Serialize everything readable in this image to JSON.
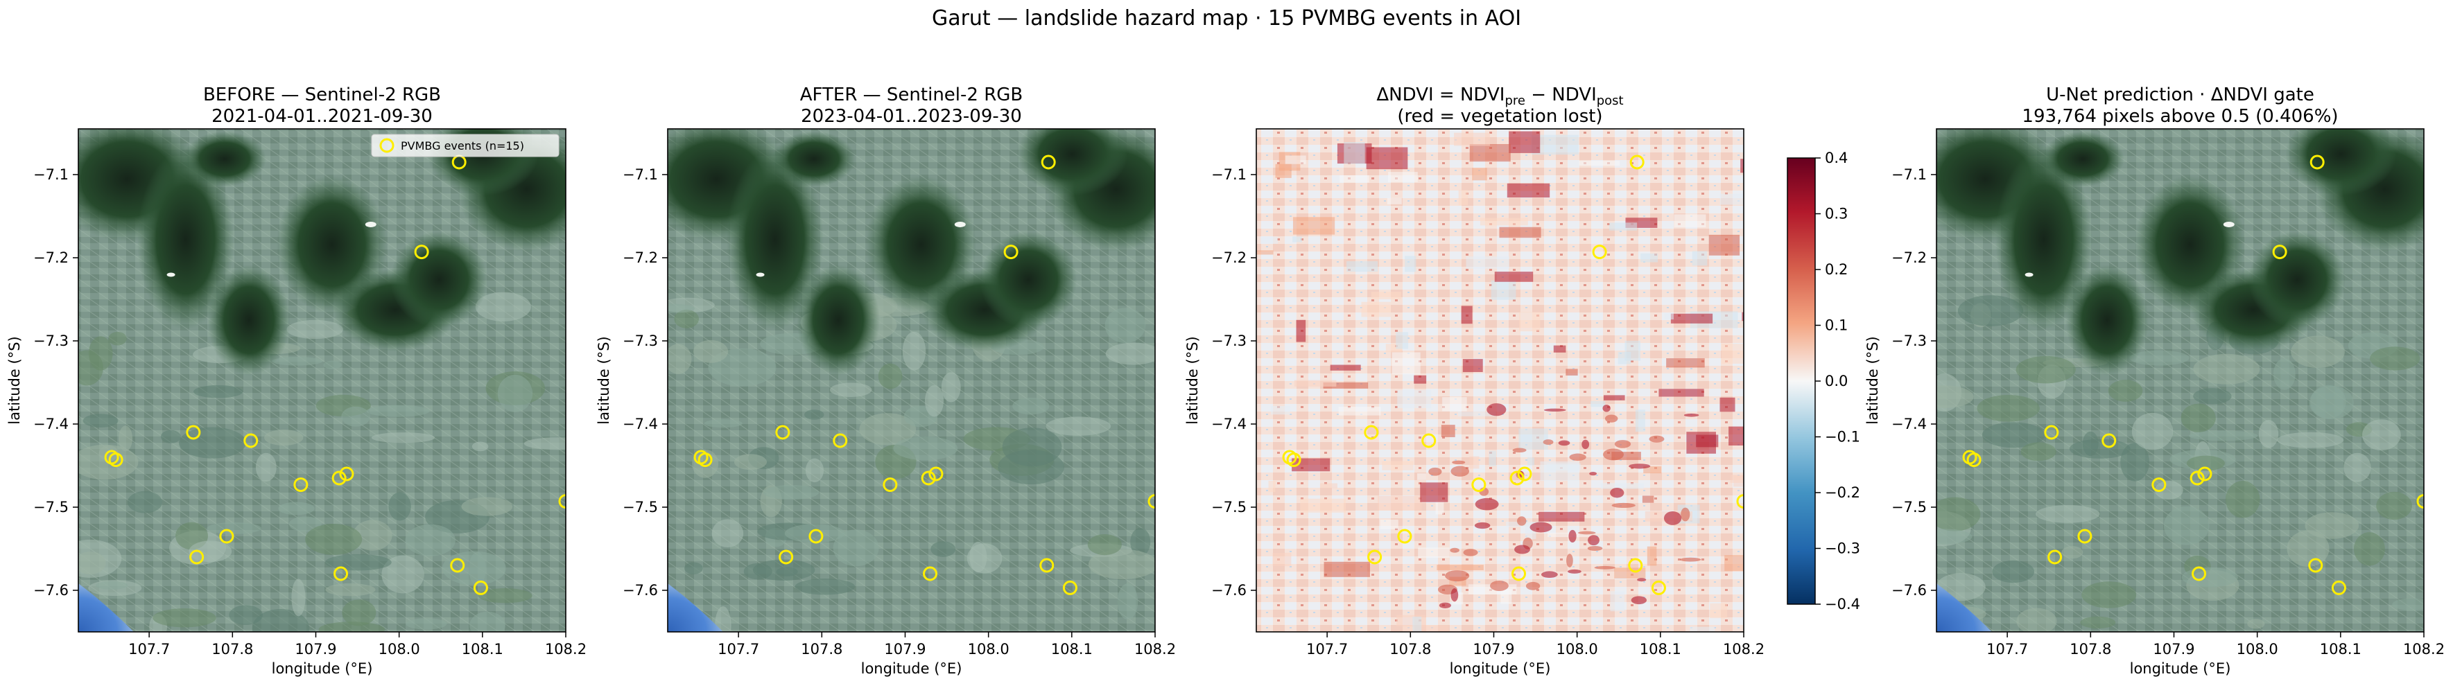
{
  "figure": {
    "suptitle": "Garut — landslide hazard map  · 15 PVMBG events in AOI"
  },
  "colors": {
    "event_marker": "#ffee00",
    "ocean": "#3b6fc0",
    "forest_dark": "#1f3a22",
    "cropland": "#6e8f82",
    "diverging_low": "#053061",
    "diverging_mid": "#f7f7f7",
    "diverging_high": "#67001f"
  },
  "panels": [
    {
      "kind": "rgb",
      "title_line1": "BEFORE — Sentinel-2 RGB",
      "title_line2": "2021-04-01..2021-09-30",
      "legend": "PVMBG events (n=15)"
    },
    {
      "kind": "rgb",
      "title_line1": "AFTER — Sentinel-2 RGB",
      "title_line2": "2023-04-01..2023-09-30"
    },
    {
      "kind": "ndvi",
      "title_prefix": "ΔNDVI = NDVI",
      "title_sub_pre": "pre",
      "title_minus": " − NDVI",
      "title_sub_post": "post",
      "title_line2": "(red = vegetation lost)"
    },
    {
      "kind": "rgb",
      "title_line1": "U-Net prediction · ΔNDVI gate",
      "title_line2": "193,764 pixels above 0.5 (0.406%)"
    }
  ],
  "axes": {
    "xlabel": "longitude (°E)",
    "ylabel": "latitude (°S)",
    "xticks": [
      "107.7",
      "107.8",
      "107.9",
      "108.0",
      "108.1",
      "108.2"
    ],
    "yticks": [
      "−7.1",
      "−7.2",
      "−7.3",
      "−7.4",
      "−7.5",
      "−7.6"
    ]
  },
  "colorbar": {
    "ticks": [
      "0.4",
      "0.3",
      "0.2",
      "0.1",
      "0.0",
      "−0.1",
      "−0.2",
      "−0.3",
      "−0.4"
    ]
  },
  "chart_data": {
    "type": "scatter",
    "xlim": [
      107.615,
      108.2
    ],
    "ylim": [
      -7.65,
      -7.045
    ],
    "colorbar_range": [
      -0.4,
      0.4
    ],
    "colormap": "diverging red-blue",
    "points": [
      {
        "lon": 107.655,
        "lat": -7.44
      },
      {
        "lon": 107.66,
        "lat": -7.443
      },
      {
        "lon": 107.757,
        "lat": -7.56
      },
      {
        "lon": 107.793,
        "lat": -7.535
      },
      {
        "lon": 107.822,
        "lat": -7.42
      },
      {
        "lon": 107.882,
        "lat": -7.473
      },
      {
        "lon": 107.928,
        "lat": -7.465
      },
      {
        "lon": 107.937,
        "lat": -7.46
      },
      {
        "lon": 107.93,
        "lat": -7.58
      },
      {
        "lon": 108.027,
        "lat": -7.193
      },
      {
        "lon": 108.072,
        "lat": -7.085
      },
      {
        "lon": 108.07,
        "lat": -7.57
      },
      {
        "lon": 108.098,
        "lat": -7.597
      },
      {
        "lon": 108.2,
        "lat": -7.493
      },
      {
        "lon": 107.753,
        "lat": -7.41
      }
    ]
  }
}
